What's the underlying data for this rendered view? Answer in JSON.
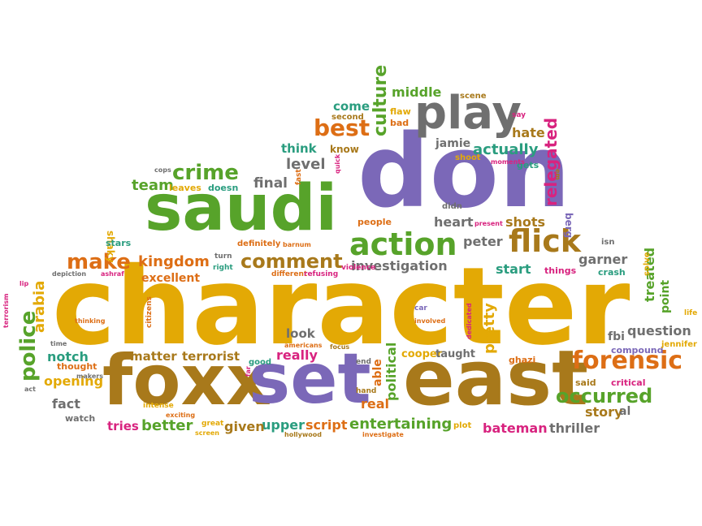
{
  "palette": {
    "gold": "#e3a905",
    "purple": "#7b68b8",
    "green": "#57a32a",
    "brown": "#a8791b",
    "orange": "#dd6e15",
    "teal": "#2a9d7f",
    "grey": "#6f6f6f",
    "pink": "#d8237f"
  },
  "words": [
    {
      "text": "character",
      "color": "gold"
    },
    {
      "text": "don",
      "color": "purple"
    },
    {
      "text": "saudi",
      "color": "green"
    },
    {
      "text": "foxx",
      "color": "brown"
    },
    {
      "text": "set",
      "color": "purple"
    },
    {
      "text": "east",
      "color": "brown"
    },
    {
      "text": "play",
      "color": "grey"
    },
    {
      "text": "action",
      "color": "green"
    },
    {
      "text": "flick",
      "color": "brown"
    },
    {
      "text": "forensic",
      "color": "orange"
    },
    {
      "text": "comment",
      "color": "brown"
    },
    {
      "text": "police",
      "color": "green"
    },
    {
      "text": "best",
      "color": "orange"
    },
    {
      "text": "crime",
      "color": "green"
    },
    {
      "text": "make",
      "color": "orange"
    },
    {
      "text": "kingdom",
      "color": "orange"
    },
    {
      "text": "occurred",
      "color": "green"
    },
    {
      "text": "question",
      "color": "grey"
    },
    {
      "text": "entertaining",
      "color": "green"
    },
    {
      "text": "investigation",
      "color": "grey"
    },
    {
      "text": "culture",
      "color": "green"
    },
    {
      "text": "relegated",
      "color": "pink"
    },
    {
      "text": "actually",
      "color": "teal"
    },
    {
      "text": "level",
      "color": "grey"
    },
    {
      "text": "final",
      "color": "grey"
    },
    {
      "text": "team",
      "color": "green"
    },
    {
      "text": "arabia",
      "color": "gold"
    },
    {
      "text": "heart",
      "color": "grey"
    },
    {
      "text": "shots",
      "color": "brown"
    },
    {
      "text": "peter",
      "color": "grey"
    },
    {
      "text": "garner",
      "color": "grey"
    },
    {
      "text": "start",
      "color": "teal"
    },
    {
      "text": "story",
      "color": "brown"
    },
    {
      "text": "bateman",
      "color": "pink"
    },
    {
      "text": "thriller",
      "color": "grey"
    },
    {
      "text": "treated",
      "color": "green"
    },
    {
      "text": "point",
      "color": "green"
    },
    {
      "text": "pretty",
      "color": "gold"
    },
    {
      "text": "political",
      "color": "green"
    },
    {
      "text": "real",
      "color": "orange"
    },
    {
      "text": "able",
      "color": "orange"
    },
    {
      "text": "cooper",
      "color": "gold"
    },
    {
      "text": "taught",
      "color": "grey"
    },
    {
      "text": "script",
      "color": "orange"
    },
    {
      "text": "upper",
      "color": "teal"
    },
    {
      "text": "given",
      "color": "brown"
    },
    {
      "text": "better",
      "color": "green"
    },
    {
      "text": "tries",
      "color": "pink"
    },
    {
      "text": "fact",
      "color": "grey"
    },
    {
      "text": "opening",
      "color": "gold"
    },
    {
      "text": "notch",
      "color": "teal"
    },
    {
      "text": "thought",
      "color": "orange"
    },
    {
      "text": "watch",
      "color": "grey"
    },
    {
      "text": "matter",
      "color": "brown"
    },
    {
      "text": "terrorist",
      "color": "brown"
    },
    {
      "text": "really",
      "color": "pink"
    },
    {
      "text": "look",
      "color": "grey"
    },
    {
      "text": "excellent",
      "color": "orange"
    },
    {
      "text": "middle",
      "color": "green"
    },
    {
      "text": "come",
      "color": "teal"
    },
    {
      "text": "hate",
      "color": "brown"
    },
    {
      "text": "think",
      "color": "teal"
    },
    {
      "text": "know",
      "color": "brown"
    },
    {
      "text": "jamie",
      "color": "grey"
    },
    {
      "text": "fbi",
      "color": "grey"
    },
    {
      "text": "compound",
      "color": "purple"
    },
    {
      "text": "crash",
      "color": "teal"
    },
    {
      "text": "things",
      "color": "pink"
    },
    {
      "text": "berg",
      "color": "purple"
    },
    {
      "text": "isn",
      "color": "grey"
    },
    {
      "text": "al",
      "color": "grey"
    },
    {
      "text": "ghazi",
      "color": "orange"
    },
    {
      "text": "critical",
      "color": "pink"
    },
    {
      "text": "said",
      "color": "brown"
    },
    {
      "text": "jennifer",
      "color": "gold"
    },
    {
      "text": "solve",
      "color": "gold"
    },
    {
      "text": "life",
      "color": "gold"
    },
    {
      "text": "shaky",
      "color": "gold"
    },
    {
      "text": "stars",
      "color": "teal"
    },
    {
      "text": "scene",
      "color": "brown"
    },
    {
      "text": "second",
      "color": "brown"
    },
    {
      "text": "flaw",
      "color": "gold"
    },
    {
      "text": "bad",
      "color": "orange"
    },
    {
      "text": "say",
      "color": "pink"
    },
    {
      "text": "shoot",
      "color": "gold"
    },
    {
      "text": "gets",
      "color": "teal"
    },
    {
      "text": "moments",
      "color": "pink"
    },
    {
      "text": "em",
      "color": "brown"
    },
    {
      "text": "didn",
      "color": "grey"
    },
    {
      "text": "present",
      "color": "pink"
    },
    {
      "text": "fast",
      "color": "orange"
    },
    {
      "text": "quick",
      "color": "pink"
    },
    {
      "text": "people",
      "color": "orange"
    },
    {
      "text": "definitely",
      "color": "orange"
    },
    {
      "text": "barnum",
      "color": "orange"
    },
    {
      "text": "violence",
      "color": "pink"
    },
    {
      "text": "different",
      "color": "orange"
    },
    {
      "text": "refusing",
      "color": "pink"
    },
    {
      "text": "right",
      "color": "teal"
    },
    {
      "text": "turn",
      "color": "grey"
    },
    {
      "text": "leaves",
      "color": "gold"
    },
    {
      "text": "doesn",
      "color": "teal"
    },
    {
      "text": "cops",
      "color": "grey"
    },
    {
      "text": "time",
      "color": "grey"
    },
    {
      "text": "ashraf",
      "color": "pink"
    },
    {
      "text": "depiction",
      "color": "grey"
    },
    {
      "text": "lip",
      "color": "pink"
    },
    {
      "text": "thinking",
      "color": "orange"
    },
    {
      "text": "citizens",
      "color": "orange"
    },
    {
      "text": "intense",
      "color": "gold"
    },
    {
      "text": "americans",
      "color": "orange"
    },
    {
      "text": "good",
      "color": "teal"
    },
    {
      "text": "far",
      "color": "pink"
    },
    {
      "text": "focus",
      "color": "brown"
    },
    {
      "text": "car",
      "color": "purple"
    },
    {
      "text": "involved",
      "color": "orange"
    },
    {
      "text": "dedicated",
      "color": "pink"
    },
    {
      "text": "end",
      "color": "grey"
    },
    {
      "text": "hand",
      "color": "brown"
    },
    {
      "text": "terrorism",
      "color": "pink"
    },
    {
      "text": "act",
      "color": "grey"
    },
    {
      "text": "makers",
      "color": "grey"
    },
    {
      "text": "exciting",
      "color": "orange"
    },
    {
      "text": "great",
      "color": "gold"
    },
    {
      "text": "screen",
      "color": "gold"
    },
    {
      "text": "hollywood",
      "color": "brown"
    },
    {
      "text": "investigate",
      "color": "orange"
    },
    {
      "text": "plot",
      "color": "gold"
    }
  ]
}
